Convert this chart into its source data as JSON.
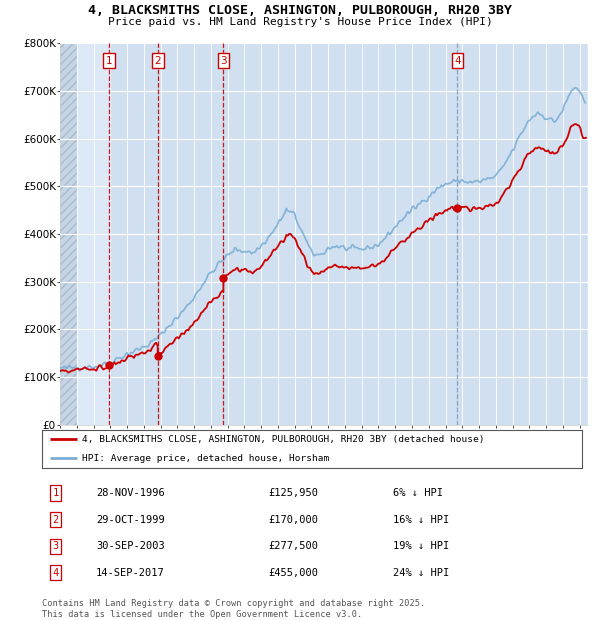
{
  "title": "4, BLACKSMITHS CLOSE, ASHINGTON, PULBOROUGH, RH20 3BY",
  "subtitle": "Price paid vs. HM Land Registry's House Price Index (HPI)",
  "ylim": [
    0,
    800000
  ],
  "yticks": [
    0,
    100000,
    200000,
    300000,
    400000,
    500000,
    600000,
    700000,
    800000
  ],
  "ytick_labels": [
    "£0",
    "£100K",
    "£200K",
    "£300K",
    "£400K",
    "£500K",
    "£600K",
    "£700K",
    "£800K"
  ],
  "xlim_start": 1994.0,
  "xlim_end": 2025.5,
  "bg_color": "#dce8f5",
  "hatch_region_color": "#c5d5e5",
  "grid_color": "#ffffff",
  "highlight_color": "#c8daed",
  "transactions": [
    {
      "num": 1,
      "date": "28-NOV-1996",
      "price": 125950,
      "pct": "6%",
      "x": 1996.91
    },
    {
      "num": 2,
      "date": "29-OCT-1999",
      "price": 170000,
      "pct": "16%",
      "x": 1999.83
    },
    {
      "num": 3,
      "date": "30-SEP-2003",
      "price": 277500,
      "pct": "19%",
      "x": 2003.75
    },
    {
      "num": 4,
      "date": "14-SEP-2017",
      "price": 455000,
      "pct": "24%",
      "x": 2017.71
    }
  ],
  "legend_line1": "4, BLACKSMITHS CLOSE, ASHINGTON, PULBOROUGH, RH20 3BY (detached house)",
  "legend_line2": "HPI: Average price, detached house, Horsham",
  "footer": "Contains HM Land Registry data © Crown copyright and database right 2025.\nThis data is licensed under the Open Government Licence v3.0.",
  "line_red_color": "#cc0000",
  "line_blue_color": "#7aadd4"
}
